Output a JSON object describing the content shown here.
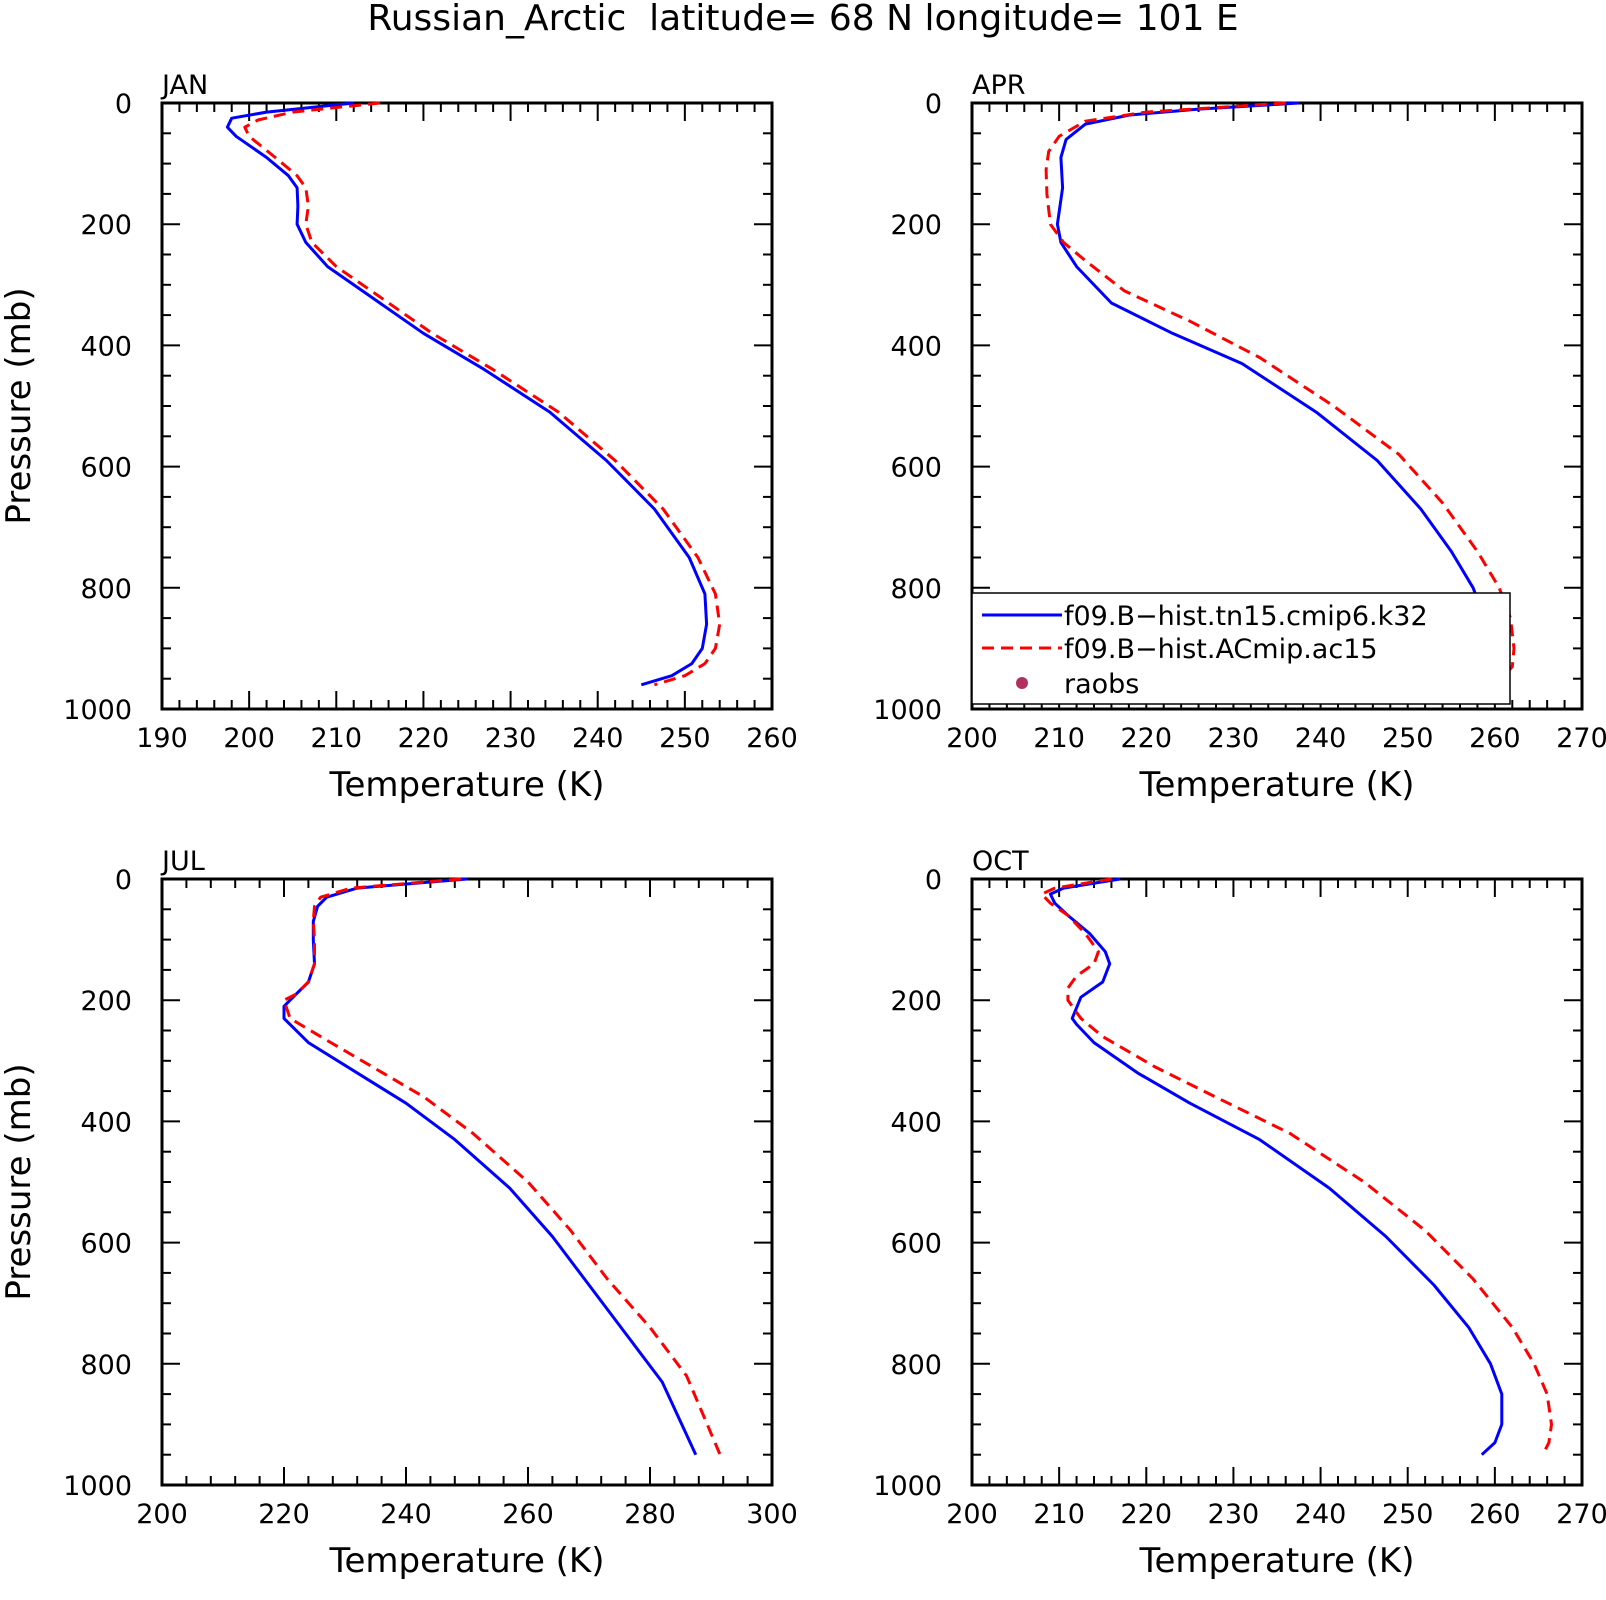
{
  "figure": {
    "title": "Russian_Arctic  latitude= 68 N longitude= 101 E"
  },
  "legend": {
    "entries": [
      {
        "label": "f09.B−hist.tn15.cmip6.k32",
        "color": "#0000ff",
        "style": "solid"
      },
      {
        "label": "f09.B−hist.ACmip.ac15",
        "color": "#ff0000",
        "style": "dashed"
      },
      {
        "label": "raobs",
        "color": "#b03060",
        "style": "marker"
      }
    ]
  },
  "chart_data": [
    {
      "type": "line",
      "panel_label": "JAN",
      "xlabel": "Temperature (K)",
      "ylabel": "Pressure (mb)",
      "xlim": [
        190,
        260
      ],
      "xticks": [
        190,
        200,
        210,
        220,
        230,
        240,
        250,
        260
      ],
      "ylim": [
        1000,
        0
      ],
      "yticks": [
        0,
        200,
        400,
        600,
        800,
        1000
      ],
      "series": [
        {
          "name": "f09.B−hist.tn15.cmip6.k32",
          "color": "#0000ff",
          "dash": false,
          "temperature": [
            212,
            202,
            198,
            197.5,
            198.5,
            202,
            204.5,
            205.5,
            205.6,
            205.5,
            206.5,
            209,
            214,
            220,
            227,
            234.5,
            241,
            246.5,
            250.5,
            252.3,
            252.5,
            252,
            250.8,
            248.5,
            245
          ],
          "pressure": [
            0,
            15,
            25,
            40,
            55,
            90,
            120,
            140,
            170,
            200,
            230,
            270,
            320,
            380,
            440,
            510,
            590,
            670,
            750,
            810,
            860,
            900,
            925,
            945,
            960
          ]
        },
        {
          "name": "f09.B−hist.ACmip.ac15",
          "color": "#ff0000",
          "dash": true,
          "temperature": [
            215,
            205,
            201,
            199.5,
            200,
            203,
            205.5,
            206.5,
            206.8,
            206.5,
            207.2,
            210,
            215,
            221,
            228,
            235.5,
            242,
            247.5,
            251.5,
            253.5,
            254,
            253.5,
            252.3,
            250,
            246.5
          ],
          "pressure": [
            0,
            15,
            28,
            40,
            55,
            90,
            120,
            140,
            170,
            200,
            230,
            270,
            320,
            380,
            440,
            510,
            590,
            670,
            750,
            810,
            860,
            900,
            925,
            945,
            960
          ]
        }
      ]
    },
    {
      "type": "line",
      "panel_label": "APR",
      "xlabel": "Temperature (K)",
      "ylabel": "",
      "xlim": [
        200,
        270
      ],
      "xticks": [
        200,
        210,
        220,
        230,
        240,
        250,
        260,
        270
      ],
      "ylim": [
        1000,
        0
      ],
      "yticks": [
        0,
        200,
        400,
        600,
        800,
        1000
      ],
      "series": [
        {
          "name": "f09.B−hist.tn15.cmip6.k32",
          "color": "#0000ff",
          "dash": false,
          "temperature": [
            237.5,
            226,
            218,
            213,
            210.8,
            210.2,
            210.4,
            209.8,
            210.2,
            212,
            216,
            223,
            231,
            239.5,
            246.5,
            251.5,
            255,
            257.5,
            258.8,
            259.5,
            259.5,
            258.2
          ],
          "pressure": [
            0,
            10,
            20,
            35,
            60,
            90,
            140,
            200,
            230,
            270,
            330,
            380,
            430,
            510,
            590,
            670,
            740,
            800,
            850,
            900,
            930,
            960
          ]
        },
        {
          "name": "f09.B−hist.ACmip.ac15",
          "color": "#ff0000",
          "dash": true,
          "temperature": [
            236,
            220,
            213,
            210,
            208.8,
            208.5,
            208.6,
            209,
            210.5,
            213,
            217.5,
            225,
            233,
            241.5,
            249,
            254,
            258,
            260.5,
            261.8,
            262.2,
            262,
            260.5
          ],
          "pressure": [
            0,
            15,
            30,
            55,
            80,
            110,
            150,
            200,
            230,
            260,
            310,
            360,
            420,
            500,
            580,
            660,
            740,
            800,
            850,
            900,
            930,
            955
          ]
        }
      ]
    },
    {
      "type": "line",
      "panel_label": "JUL",
      "xlabel": "Temperature (K)",
      "ylabel": "Pressure (mb)",
      "xlim": [
        200,
        300
      ],
      "xticks": [
        200,
        220,
        240,
        260,
        280,
        300
      ],
      "ylim": [
        1000,
        0
      ],
      "yticks": [
        0,
        200,
        400,
        600,
        800,
        1000
      ],
      "series": [
        {
          "name": "f09.B−hist.tn15.cmip6.k32",
          "color": "#0000ff",
          "dash": false,
          "temperature": [
            250,
            232,
            227,
            225.5,
            224.8,
            224.8,
            225,
            224,
            222,
            220,
            220,
            224,
            240,
            248,
            257,
            264,
            270,
            276,
            282,
            287.5
          ],
          "pressure": [
            0,
            15,
            30,
            45,
            70,
            100,
            140,
            170,
            190,
            210,
            230,
            270,
            370,
            430,
            510,
            590,
            670,
            750,
            830,
            950
          ]
        },
        {
          "name": "f09.B−hist.ACmip.ac15",
          "color": "#ff0000",
          "dash": true,
          "temperature": [
            249,
            231,
            226,
            225,
            224.8,
            225,
            225,
            224,
            222,
            220,
            221,
            226,
            243,
            251,
            260,
            267,
            273,
            280,
            286,
            291.5
          ],
          "pressure": [
            0,
            15,
            30,
            45,
            70,
            100,
            140,
            170,
            190,
            200,
            230,
            260,
            360,
            420,
            500,
            580,
            660,
            740,
            820,
            950
          ]
        }
      ]
    },
    {
      "type": "line",
      "panel_label": "OCT",
      "xlabel": "Temperature (K)",
      "ylabel": "",
      "xlim": [
        200,
        270
      ],
      "xticks": [
        200,
        210,
        220,
        230,
        240,
        250,
        260,
        270
      ],
      "ylim": [
        1000,
        0
      ],
      "yticks": [
        0,
        200,
        400,
        600,
        800,
        1000
      ],
      "series": [
        {
          "name": "f09.B−hist.tn15.cmip6.k32",
          "color": "#0000ff",
          "dash": false,
          "temperature": [
            217,
            210.5,
            209,
            209.5,
            211,
            213.5,
            215.3,
            215.8,
            215,
            212.5,
            211.5,
            212,
            214,
            219,
            225,
            233,
            241,
            247.5,
            253,
            257,
            259.5,
            260.8,
            260.8,
            260,
            258.5
          ],
          "pressure": [
            0,
            15,
            25,
            40,
            60,
            90,
            120,
            140,
            170,
            195,
            230,
            240,
            270,
            320,
            370,
            430,
            510,
            590,
            670,
            740,
            800,
            850,
            900,
            930,
            950
          ]
        },
        {
          "name": "f09.B−hist.ACmip.ac15",
          "color": "#ff0000",
          "dash": true,
          "temperature": [
            216,
            209.5,
            208,
            209,
            211,
            213,
            214.5,
            214,
            212,
            211,
            211,
            212.5,
            215,
            221,
            228,
            236.5,
            245,
            252,
            257.5,
            262,
            264.5,
            266,
            266.5,
            266.2,
            265.5
          ],
          "pressure": [
            0,
            15,
            25,
            40,
            60,
            90,
            120,
            140,
            160,
            180,
            200,
            230,
            260,
            310,
            360,
            420,
            500,
            580,
            660,
            740,
            800,
            850,
            900,
            930,
            950
          ]
        }
      ]
    }
  ]
}
